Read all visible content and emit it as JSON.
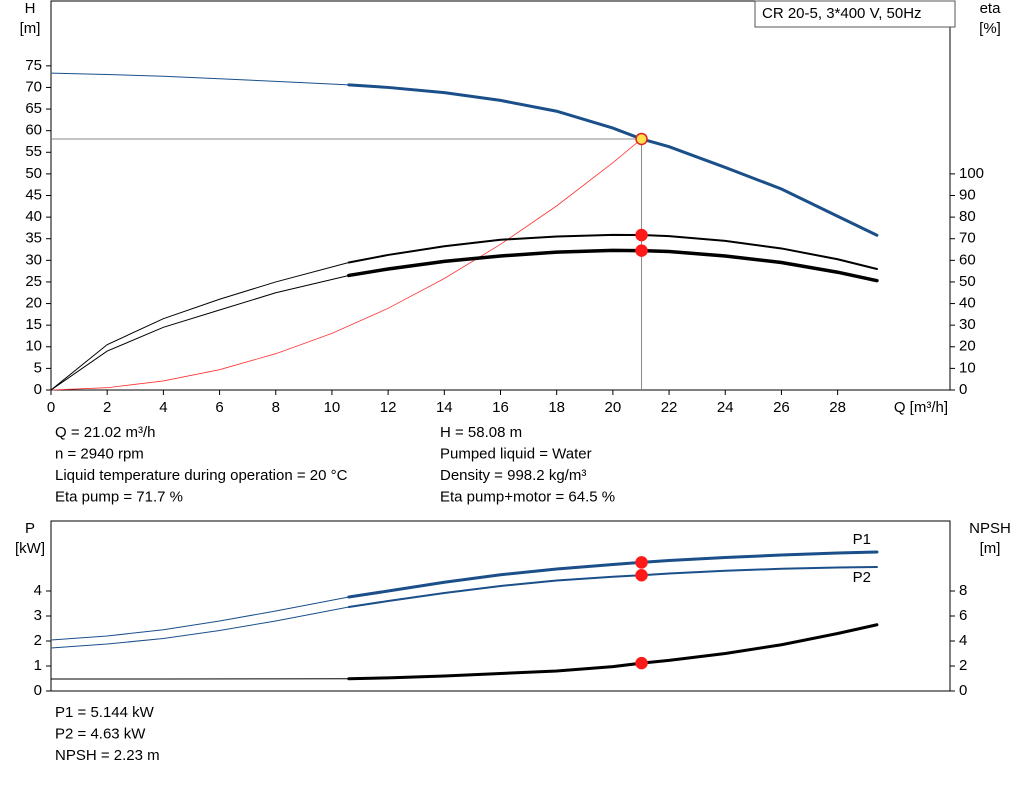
{
  "chart_data": [
    {
      "type": "line",
      "title": "CR 20-5, 3*400 V, 50Hz",
      "y_label": [
        "H",
        "[m]"
      ],
      "y2_label": [
        "eta",
        "[%]"
      ],
      "x_label": "Q [m³/h]",
      "xlim": [
        0,
        32
      ],
      "xticks": [
        0,
        2,
        4,
        6,
        8,
        10,
        12,
        14,
        16,
        18,
        20,
        22,
        24,
        26,
        28
      ],
      "ylim": [
        0,
        90
      ],
      "yticks": [
        0,
        5,
        10,
        15,
        20,
        25,
        30,
        35,
        40,
        45,
        50,
        55,
        60,
        65,
        70,
        75
      ],
      "y2lim": [
        0,
        180
      ],
      "y2ticks": [
        0,
        10,
        20,
        30,
        40,
        50,
        60,
        70,
        80,
        90,
        100
      ],
      "grid": false,
      "series": [
        {
          "color": "#1a4f8a",
          "width": 1,
          "x": [
            0,
            2,
            4,
            6,
            8,
            10.6
          ],
          "values": [
            73.3,
            73.0,
            72.6,
            72.0,
            71.4,
            70.6
          ]
        },
        {
          "color": "#1a4f8a",
          "width": 3,
          "x": [
            10.6,
            12,
            14,
            16,
            18,
            20,
            21.02,
            22,
            24,
            26,
            28,
            29.4
          ],
          "values": [
            70.6,
            70.0,
            68.8,
            67.0,
            64.5,
            60.6,
            58.08,
            56.3,
            51.5,
            46.5,
            40.2,
            35.8
          ]
        },
        {
          "color": "#ff3333",
          "width": 0.8,
          "x": [
            0,
            2,
            4,
            6,
            8,
            10,
            12,
            14,
            16,
            18,
            20,
            21.02
          ],
          "values": [
            0,
            0.53,
            2.1,
            4.7,
            8.4,
            13.1,
            18.9,
            25.8,
            33.7,
            42.6,
            52.6,
            58.08
          ]
        },
        {
          "color": "#000000",
          "width": 1,
          "axis": "y2",
          "x": [
            0,
            2,
            4,
            6,
            8,
            10.6
          ],
          "values": [
            0,
            21,
            33,
            42,
            50,
            59
          ]
        },
        {
          "color": "#000000",
          "width": 2,
          "axis": "y2",
          "x": [
            10.6,
            12,
            14,
            16,
            18,
            20,
            21.02,
            22,
            24,
            26,
            28,
            29.4
          ],
          "values": [
            59,
            62.5,
            66.5,
            69.5,
            71,
            71.8,
            71.7,
            71.2,
            69,
            65.5,
            60.5,
            56
          ]
        },
        {
          "color": "#000000",
          "width": 1,
          "axis": "y2",
          "x": [
            0,
            2,
            4,
            6,
            8,
            10.6
          ],
          "values": [
            0,
            18,
            29,
            37,
            45,
            53
          ]
        },
        {
          "color": "#000000",
          "width": 3.5,
          "axis": "y2",
          "x": [
            10.6,
            12,
            14,
            16,
            18,
            20,
            21.02,
            22,
            24,
            26,
            28,
            29.4
          ],
          "values": [
            53,
            56,
            59.5,
            62,
            63.8,
            64.6,
            64.5,
            64.1,
            62,
            59,
            54.5,
            50.6
          ]
        }
      ],
      "markers": [
        {
          "x": 21.02,
          "y": 58.08,
          "color": "#ffe14d",
          "guide": true
        },
        {
          "x": 21.02,
          "y": 71.7,
          "axis": "y2",
          "color": "#ff1a1a"
        },
        {
          "x": 21.02,
          "y": 64.5,
          "axis": "y2",
          "color": "#ff1a1a"
        }
      ],
      "info": [
        [
          "Q = 21.02 m³/h",
          "n = 2940 rpm",
          "Liquid temperature during operation = 20 °C",
          "Eta pump = 71.7 %"
        ],
        [
          "H = 58.08 m",
          "Pumped liquid = Water",
          "Density = 998.2 kg/m³",
          "Eta pump+motor = 64.5 %"
        ]
      ]
    },
    {
      "type": "line",
      "y_label": [
        "P",
        "[kW]"
      ],
      "y2_label": [
        "NPSH",
        "[m]"
      ],
      "xlim": [
        0,
        32
      ],
      "ylim": [
        0,
        6.8
      ],
      "yticks": [
        0,
        1,
        2,
        3,
        4
      ],
      "y2lim": [
        0,
        13.6
      ],
      "y2ticks": [
        0,
        2,
        4,
        6,
        8
      ],
      "grid": false,
      "series": [
        {
          "color": "#1a4f8a",
          "width": 1,
          "x": [
            0,
            2,
            4,
            6,
            8,
            10.6
          ],
          "values": [
            2.04,
            2.2,
            2.45,
            2.8,
            3.2,
            3.76
          ]
        },
        {
          "name": "P1",
          "color": "#1a4f8a",
          "width": 3,
          "x": [
            10.6,
            12,
            14,
            16,
            18,
            20,
            21.02,
            22,
            24,
            26,
            28,
            29.4
          ],
          "values": [
            3.76,
            4.0,
            4.35,
            4.65,
            4.88,
            5.06,
            5.144,
            5.22,
            5.34,
            5.44,
            5.52,
            5.56
          ]
        },
        {
          "color": "#1a4f8a",
          "width": 1,
          "x": [
            0,
            2,
            4,
            6,
            8,
            10.6
          ],
          "values": [
            1.72,
            1.88,
            2.1,
            2.42,
            2.8,
            3.36
          ]
        },
        {
          "name": "P2",
          "color": "#1a4f8a",
          "width": 2,
          "x": [
            10.6,
            12,
            14,
            16,
            18,
            20,
            21.02,
            22,
            24,
            26,
            28,
            29.4
          ],
          "values": [
            3.36,
            3.6,
            3.92,
            4.2,
            4.42,
            4.57,
            4.63,
            4.7,
            4.81,
            4.89,
            4.94,
            4.96
          ]
        },
        {
          "color": "#000000",
          "width": 1,
          "axis": "y2",
          "x": [
            0,
            4,
            8,
            10.6
          ],
          "values": [
            0.96,
            0.96,
            0.97,
            0.98
          ]
        },
        {
          "color": "#000000",
          "width": 3,
          "axis": "y2",
          "x": [
            10.6,
            12,
            14,
            16,
            18,
            20,
            21.02,
            22,
            24,
            26,
            28,
            29.4
          ],
          "values": [
            0.98,
            1.05,
            1.2,
            1.4,
            1.6,
            1.95,
            2.23,
            2.45,
            3.0,
            3.7,
            4.6,
            5.3
          ]
        }
      ],
      "markers": [
        {
          "x": 21.02,
          "y": 5.144,
          "color": "#ff1a1a"
        },
        {
          "x": 21.02,
          "y": 4.63,
          "color": "#ff1a1a"
        },
        {
          "x": 21.02,
          "y": 2.23,
          "axis": "y2",
          "color": "#ff1a1a"
        }
      ],
      "info": [
        [
          "P1 = 5.144 kW",
          "P2 = 4.63 kW",
          "NPSH = 2.23 m"
        ]
      ]
    }
  ]
}
